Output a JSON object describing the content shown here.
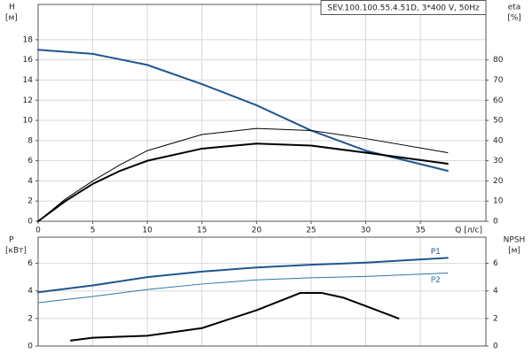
{
  "chart_data": [
    {
      "type": "line",
      "title": "SEV.100.100.55.4.51D, 3*400 V, 50Hz",
      "ylabel": "H",
      "yunit": "[м]",
      "y2label": "eta",
      "y2unit": "[%]",
      "xlabel": "Q [л/с]",
      "xlim": [
        0,
        41
      ],
      "xticks": [
        0,
        5,
        10,
        15,
        20,
        25,
        30,
        35
      ],
      "ylim": [
        0,
        21.5
      ],
      "yticks": [
        0,
        2,
        4,
        6,
        8,
        10,
        12,
        14,
        16,
        18
      ],
      "y2lim": [
        0,
        107.5
      ],
      "y2ticks": [
        0,
        10,
        20,
        30,
        40,
        50,
        60,
        70,
        80
      ],
      "grid": true,
      "series": [
        {
          "color": "#1f5591",
          "width": 2,
          "x": [
            0,
            5,
            10,
            15,
            20,
            25,
            30,
            37.5
          ],
          "values": [
            17,
            16.6,
            15.5,
            13.6,
            11.5,
            9,
            7,
            5
          ]
        },
        {
          "color": "#000000",
          "width": 1,
          "axis": "y2",
          "x": [
            0,
            2.5,
            5,
            7.5,
            10,
            15,
            20,
            25,
            30,
            37.5
          ],
          "values": [
            0,
            11,
            20,
            28,
            35,
            43,
            46,
            45,
            41,
            34
          ]
        },
        {
          "color": "#000000",
          "width": 2,
          "axis": "y2",
          "x": [
            0,
            2.5,
            5,
            7.5,
            10,
            15,
            20,
            25,
            30,
            37.5
          ],
          "values": [
            0,
            10,
            18.5,
            25,
            30,
            36,
            38.5,
            37.5,
            34,
            28.5
          ]
        }
      ]
    },
    {
      "type": "line",
      "ylabel": "P",
      "yunit": "[кВт]",
      "y2label": "NPSH",
      "y2unit": "[м]",
      "xlim": [
        0,
        41
      ],
      "ylim": [
        0,
        7.9
      ],
      "yticks": [
        0,
        2,
        4,
        6
      ],
      "y2lim": [
        0,
        7.9
      ],
      "y2ticks": [
        0,
        2,
        4,
        6
      ],
      "grid": true,
      "series": [
        {
          "name": "P1",
          "color": "#1f5591",
          "width": 2,
          "x": [
            0,
            5,
            10,
            15,
            20,
            25,
            30,
            37.5
          ],
          "values": [
            3.9,
            4.4,
            5,
            5.4,
            5.7,
            5.9,
            6.05,
            6.4
          ]
        },
        {
          "name": "P2",
          "color": "#2b78a8",
          "width": 1,
          "x": [
            0,
            5,
            10,
            15,
            20,
            25,
            30,
            37.5
          ],
          "values": [
            3.15,
            3.6,
            4.1,
            4.5,
            4.8,
            4.95,
            5.05,
            5.3
          ]
        },
        {
          "color": "#000000",
          "width": 2,
          "axis": "y2",
          "x": [
            3,
            5,
            10,
            15,
            20,
            24,
            26,
            28,
            30,
            33
          ],
          "values": [
            0.4,
            0.6,
            0.75,
            1.3,
            2.6,
            3.85,
            3.85,
            3.5,
            2.9,
            2.0
          ]
        }
      ]
    }
  ]
}
